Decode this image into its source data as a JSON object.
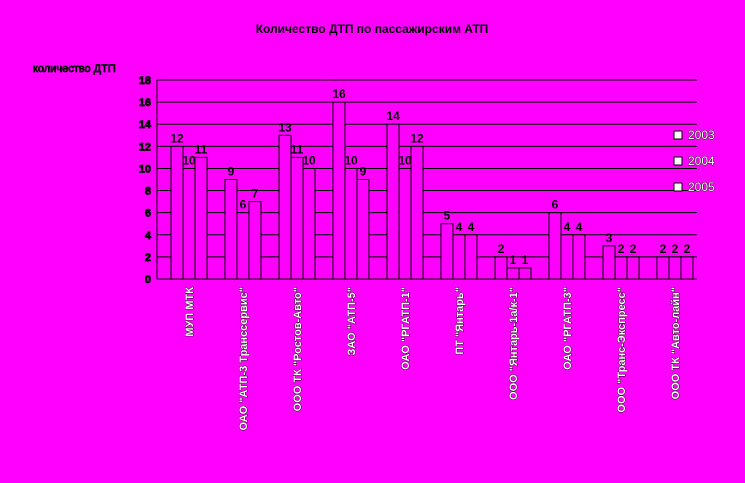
{
  "chart_data": {
    "type": "bar",
    "title": "Количество ДТП по пассажирским АТП",
    "ylabel": "количество ДТП",
    "xlabel": "",
    "ylim": [
      0,
      18
    ],
    "ytick_step": 2,
    "grid": true,
    "legend_position": "right",
    "categories": [
      "МУП МТК",
      "ОАО \"АТП-3 Транссервис\"",
      "ООО ТК \"Ростов-Авто\"",
      "ЗАО \"АТП-5\"",
      "ОАО \"РГАТП-1\"",
      "ПТ \"Янтарь\"",
      "ООО \"Янтарь-1а/к-1\"",
      "ОАО \"РГАТП-3\"",
      "ООО \"Транс-Экспресс\"",
      "ООО ТК \"Авто-лайн\""
    ],
    "series": [
      {
        "name": "2003",
        "values": [
          12,
          9,
          13,
          16,
          14,
          5,
          2,
          6,
          3,
          2
        ]
      },
      {
        "name": "2004",
        "values": [
          10,
          6,
          11,
          10,
          10,
          4,
          1,
          4,
          2,
          2
        ]
      },
      {
        "name": "2005",
        "values": [
          11,
          7,
          10,
          9,
          12,
          4,
          1,
          4,
          2,
          2
        ]
      }
    ]
  },
  "colors": {
    "background": "#ff00ff",
    "bar_fill": "#ff00ff",
    "bar_stroke": "#000000",
    "grid": "#000000",
    "category_text": "#ffffff"
  }
}
